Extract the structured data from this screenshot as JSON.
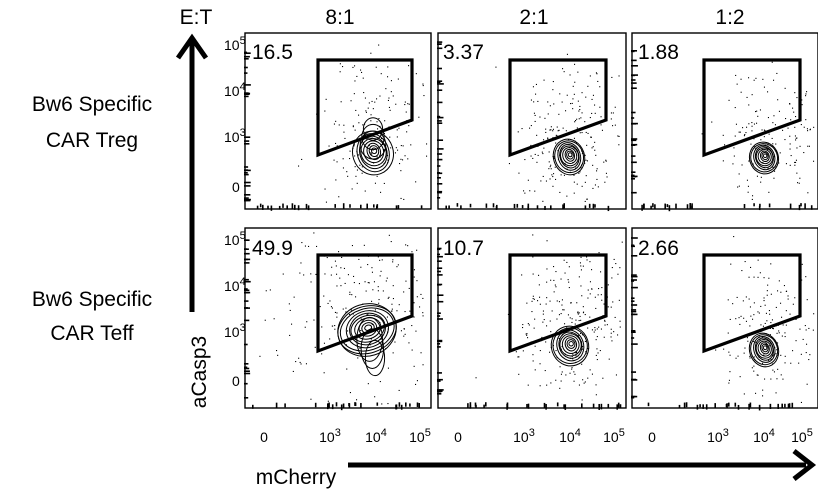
{
  "chart_data": {
    "type": "flow-cytometry-contour-grid",
    "corner_label": "E:T",
    "x_axis_label": "mCherry",
    "y_axis_label": "aCasp3",
    "columns": [
      "8:1",
      "2:1",
      "1:2"
    ],
    "rows": [
      {
        "label_line1": "Bw6 Specific",
        "label_line2": "CAR Treg"
      },
      {
        "label_line1": "Bw6 Specific",
        "label_line2": "CAR Teff"
      }
    ],
    "gate_percentages": [
      [
        "16.5",
        "3.37",
        "1.88"
      ],
      [
        "49.9",
        "10.7",
        "2.66"
      ]
    ],
    "y_ticks": [
      {
        "base": "10",
        "exp": "5"
      },
      {
        "base": "10",
        "exp": "4"
      },
      {
        "base": "10",
        "exp": "3"
      },
      {
        "base": "0",
        "exp": ""
      }
    ],
    "x_ticks": [
      {
        "base": "0",
        "exp": ""
      },
      {
        "base": "10",
        "exp": "3"
      },
      {
        "base": "10",
        "exp": "4"
      },
      {
        "base": "10",
        "exp": "5"
      }
    ]
  }
}
